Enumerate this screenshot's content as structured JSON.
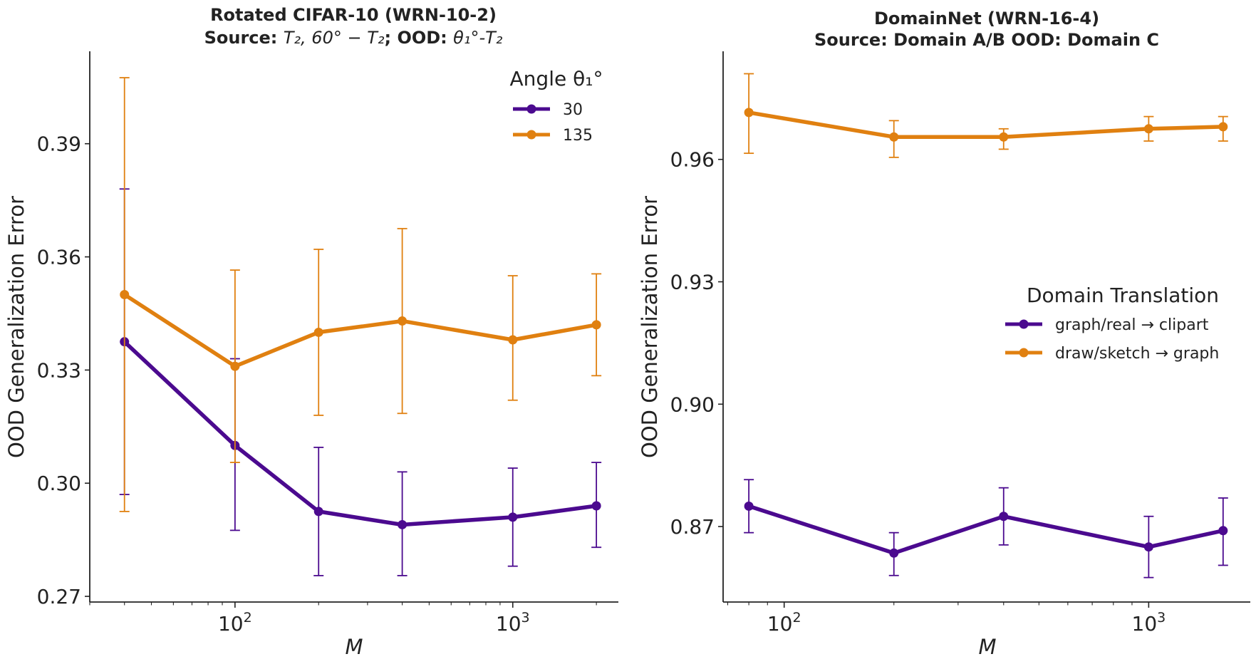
{
  "chart_data": [
    {
      "type": "line",
      "title": "Rotated CIFAR-10 (WRN-10-2)",
      "subtitle": {
        "source_prefix": "Source: ",
        "source_value": "T₂, 60° − T₂",
        "ood_prefix": "; OOD: ",
        "ood_value": "θ₁°-T₂"
      },
      "xlabel": "M",
      "ylabel": "OOD Generalization Error",
      "xscale": "log",
      "xlim": [
        30,
        2400
      ],
      "ylim": [
        0.2685,
        0.4145
      ],
      "xticks": [
        {
          "value": 100,
          "base": "10",
          "exp": "2"
        },
        {
          "value": 1000,
          "base": "10",
          "exp": "3"
        }
      ],
      "yticks": [
        {
          "value": 0.27,
          "label": "0.27"
        },
        {
          "value": 0.3,
          "label": "0.30"
        },
        {
          "value": 0.33,
          "label": "0.33"
        },
        {
          "value": 0.36,
          "label": "0.36"
        },
        {
          "value": 0.39,
          "label": "0.39"
        }
      ],
      "legend": {
        "title": "Angle θ₁°",
        "position": "top-right"
      },
      "x": [
        40,
        100,
        200,
        400,
        1000,
        2000
      ],
      "series": [
        {
          "name": "30",
          "color": "#4b0a8f",
          "values": [
            0.3375,
            0.31,
            0.2925,
            0.289,
            0.291,
            0.294
          ],
          "err_low": [
            0.297,
            0.2875,
            0.2755,
            0.2755,
            0.278,
            0.283
          ],
          "err_high": [
            0.378,
            0.333,
            0.3095,
            0.303,
            0.304,
            0.3055
          ]
        },
        {
          "name": "135",
          "color": "#e08010",
          "values": [
            0.35,
            0.331,
            0.34,
            0.343,
            0.338,
            0.342
          ],
          "err_low": [
            0.2925,
            0.3055,
            0.318,
            0.3185,
            0.322,
            0.3285
          ],
          "err_high": [
            0.4075,
            0.3565,
            0.362,
            0.3675,
            0.355,
            0.3555
          ]
        }
      ]
    },
    {
      "type": "line",
      "title": "DomainNet (WRN-16-4)",
      "subtitle": {
        "source_prefix": "Source: Domain A/B OOD: Domain C",
        "source_value": "",
        "ood_prefix": "",
        "ood_value": ""
      },
      "xlabel": "M",
      "ylabel": "OOD Generalization Error",
      "xscale": "log",
      "xlim": [
        68,
        1900
      ],
      "ylim": [
        0.8515,
        0.9865
      ],
      "xticks": [
        {
          "value": 100,
          "base": "10",
          "exp": "2"
        },
        {
          "value": 1000,
          "base": "10",
          "exp": "3"
        }
      ],
      "yticks": [
        {
          "value": 0.87,
          "label": "0.87"
        },
        {
          "value": 0.9,
          "label": "0.90"
        },
        {
          "value": 0.93,
          "label": "0.93"
        },
        {
          "value": 0.96,
          "label": "0.96"
        }
      ],
      "legend": {
        "title": "Domain Translation",
        "position": "center-right"
      },
      "x": [
        80,
        200,
        400,
        1000,
        1600
      ],
      "series": [
        {
          "name": "graph/real → clipart",
          "color": "#4b0a8f",
          "values": [
            0.875,
            0.8635,
            0.8725,
            0.865,
            0.869
          ],
          "err_low": [
            0.8685,
            0.858,
            0.8655,
            0.8575,
            0.8605
          ],
          "err_high": [
            0.8815,
            0.8685,
            0.8795,
            0.8725,
            0.877
          ]
        },
        {
          "name": "draw/sketch → graph",
          "color": "#e08010",
          "values": [
            0.9715,
            0.9655,
            0.9655,
            0.9675,
            0.968
          ],
          "err_low": [
            0.9615,
            0.9605,
            0.9625,
            0.9645,
            0.9645
          ],
          "err_high": [
            0.981,
            0.9695,
            0.9675,
            0.9705,
            0.9705
          ]
        }
      ]
    }
  ]
}
